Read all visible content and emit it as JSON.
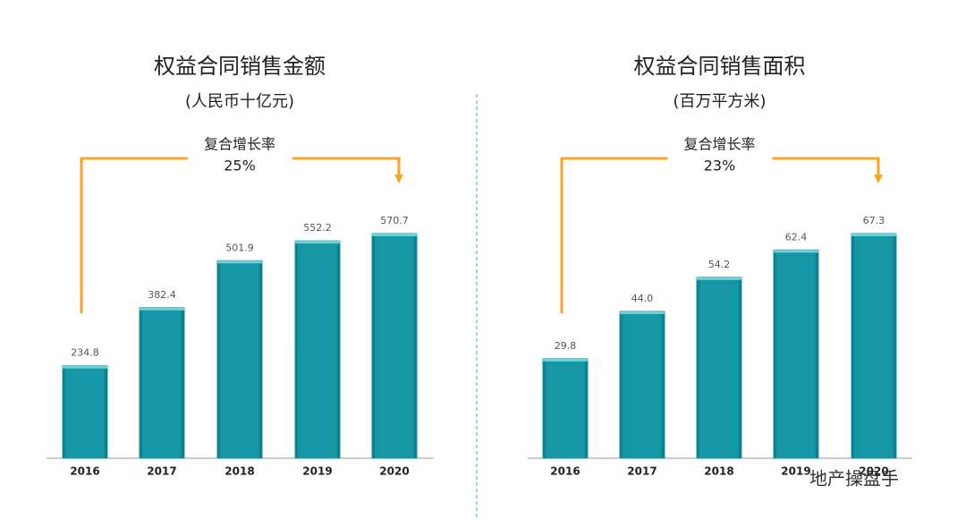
{
  "chart_data": [
    {
      "type": "bar",
      "title": "权益合同销售金额",
      "subtitle": "(人民币十亿元)",
      "annotations": [
        "复合增长率",
        "25%"
      ],
      "categories": [
        "2016",
        "2017",
        "2018",
        "2019",
        "2020"
      ],
      "values": [
        234.8,
        382.4,
        501.9,
        552.2,
        570.7
      ],
      "color": "#1597a5"
    },
    {
      "type": "bar",
      "title": "权益合同销售面积",
      "subtitle": "(百万平方米)",
      "annotations": [
        "复合增长率",
        "23%"
      ],
      "categories": [
        "2016",
        "2017",
        "2018",
        "2019",
        "2020"
      ],
      "values": [
        29.8,
        44,
        54.2,
        62.4,
        67.3
      ],
      "value_labels": [
        "29.8",
        "44.0",
        "54.2",
        "62.4",
        "67.3"
      ],
      "color": "#1597a5"
    }
  ],
  "watermark": "地产操盘手"
}
